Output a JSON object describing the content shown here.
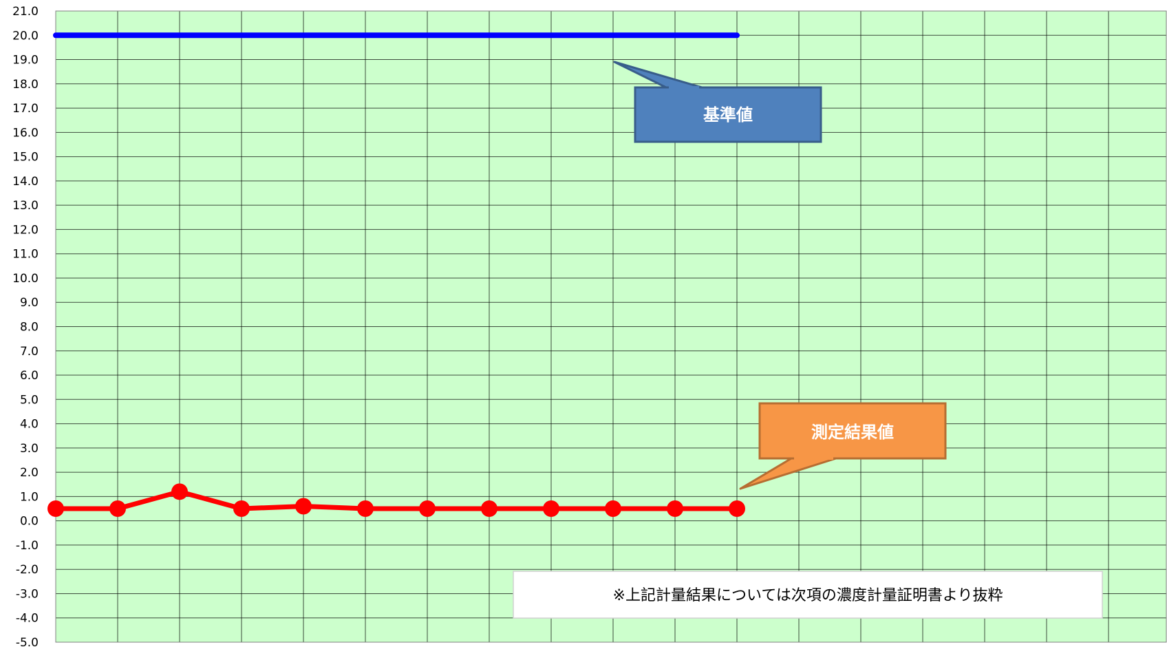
{
  "chart_data": {
    "type": "line",
    "title": "",
    "xlabel": "",
    "ylabel": "",
    "ylim": [
      -5,
      21
    ],
    "y_ticks": [
      "21.0",
      "20.0",
      "19.0",
      "18.0",
      "17.0",
      "16.0",
      "15.0",
      "14.0",
      "13.0",
      "12.0",
      "11.0",
      "10.0",
      "9.0",
      "8.0",
      "7.0",
      "6.0",
      "5.0",
      "4.0",
      "3.0",
      "2.0",
      "1.0",
      "0.0",
      "-1.0",
      "-2.0",
      "-3.0",
      "-4.0",
      "-5.0"
    ],
    "x_count": 18,
    "grid": true,
    "plot_background": "#ccffcc",
    "series": [
      {
        "color": "#0000ff",
        "markers": false,
        "values": [
          20,
          20,
          20,
          20,
          20,
          20,
          20,
          20,
          20,
          20,
          20,
          20
        ]
      },
      {
        "color": "#ff0000",
        "markers": true,
        "values": [
          0.5,
          0.5,
          1.2,
          0.5,
          0.6,
          0.5,
          0.5,
          0.5,
          0.5,
          0.5,
          0.5,
          0.5
        ]
      }
    ],
    "callouts": [
      {
        "text": "基準値",
        "fill": "#4f81bd",
        "border": "#385d8a",
        "points_to_series": 0
      },
      {
        "text": "測定結果値",
        "fill": "#f79646",
        "border": "#b66d31",
        "points_to_series": 1
      }
    ],
    "note": "※上記計量結果については次項の濃度計量証明書より抜粋"
  }
}
